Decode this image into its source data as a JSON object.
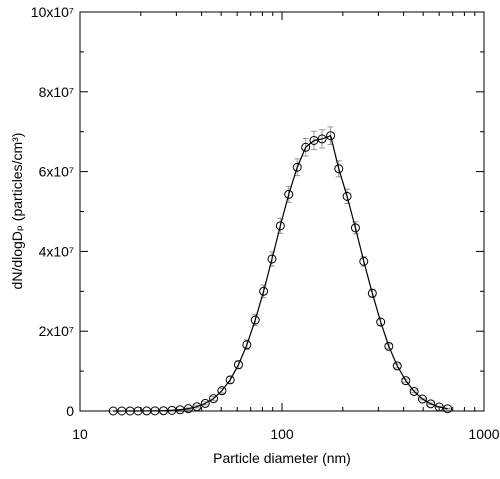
{
  "chart_data": {
    "type": "line",
    "x_label": "Particle diameter (nm)",
    "y_label": "dN/dlogDₚ (particles/cm³)",
    "x_log": true,
    "xlim": [
      10,
      1000
    ],
    "xticks": [
      10,
      100,
      1000
    ],
    "xminorticks": [
      20,
      30,
      40,
      50,
      60,
      70,
      80,
      90,
      200,
      300,
      400,
      500,
      600,
      700,
      800,
      900
    ],
    "ylim": [
      0,
      100000000
    ],
    "yticks": [
      0,
      {
        "value": 20000000,
        "label": "2x10⁷"
      },
      {
        "value": 40000000,
        "label": "4x10⁷"
      },
      {
        "value": 60000000,
        "label": "6x10⁷"
      },
      {
        "value": 80000000,
        "label": "8x10⁷"
      },
      {
        "value": 100000000,
        "label": "10x10⁷"
      }
    ],
    "yminorticks": [
      10000000,
      30000000,
      50000000,
      70000000,
      90000000
    ],
    "x": [
      14.6,
      16.1,
      17.7,
      19.4,
      21.4,
      23.5,
      25.9,
      28.5,
      31.3,
      34.4,
      37.9,
      41.7,
      45.8,
      50.4,
      55.4,
      60.9,
      67.0,
      73.7,
      81.1,
      89.2,
      98.1,
      108,
      119,
      131,
      144,
      158,
      174,
      191,
      210,
      231,
      254,
      280,
      308,
      338,
      372,
      410,
      451,
      496,
      545,
      600,
      660
    ],
    "series": [
      {
        "color": "#000000",
        "error_color": "#999999",
        "values": [
          0,
          1000,
          3000,
          7000,
          17000,
          37000,
          78000,
          160000,
          310000,
          590000,
          1080000,
          1900000,
          3100000,
          5100000,
          7800000,
          11600000,
          16600000,
          22800000,
          30000000,
          38100000,
          46400000,
          54300000,
          61100000,
          66100000,
          67800000,
          68200000,
          69000000,
          60700000,
          53800000,
          45900000,
          37500000,
          29500000,
          22300000,
          16200000,
          11300000,
          7600000,
          4900000,
          3000000,
          1800000,
          1000000,
          570000
        ],
        "errors": [
          0,
          0,
          0,
          0,
          0,
          0,
          0,
          100000,
          100000,
          200000,
          300000,
          400000,
          500000,
          600000,
          800000,
          1000000,
          1200000,
          1400000,
          1600000,
          1800000,
          1900000,
          2000000,
          2100000,
          2200000,
          2300000,
          2300000,
          2200000,
          2000000,
          1800000,
          1500000,
          1200000,
          1000000,
          800000,
          600000,
          500000,
          400000,
          300000,
          200000,
          200000,
          100000,
          100000
        ]
      }
    ]
  }
}
